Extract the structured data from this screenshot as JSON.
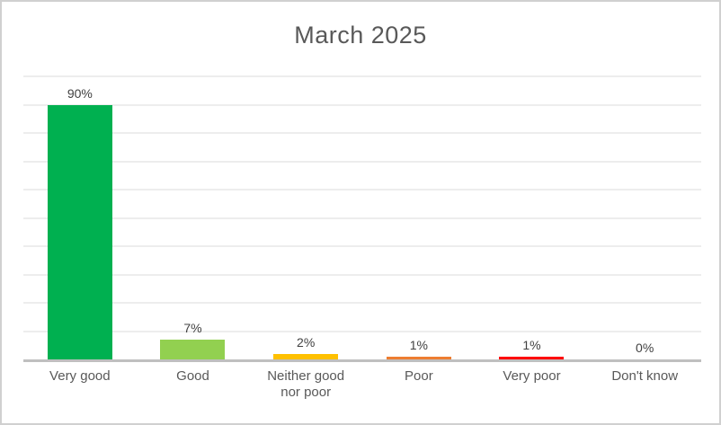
{
  "chart_data": {
    "type": "bar",
    "title": "March 2025",
    "categories": [
      "Very good",
      "Good",
      "Neither good nor poor",
      "Poor",
      "Very poor",
      "Don't know"
    ],
    "values": [
      90,
      7,
      2,
      1,
      1,
      0
    ],
    "labels": [
      "90%",
      "7%",
      "2%",
      "1%",
      "1%",
      "0%"
    ],
    "bar_colors": [
      "#00B050",
      "#92D050",
      "#FFC000",
      "#ED7D31",
      "#FF0000",
      null
    ],
    "xlabel": "",
    "ylabel": "",
    "ylim": [
      0,
      100
    ],
    "gridline_step": 10,
    "grid": "horizontal-only",
    "legend": "none",
    "data_labels_position": "outside-end",
    "title_color": "#595959",
    "data_label_color": "#404040",
    "tick_label_color": "#595959",
    "gridline_color": "#EDEDED",
    "axis_line_color": "#BFBFBF",
    "frame_border_color": "#D0D0D0"
  }
}
